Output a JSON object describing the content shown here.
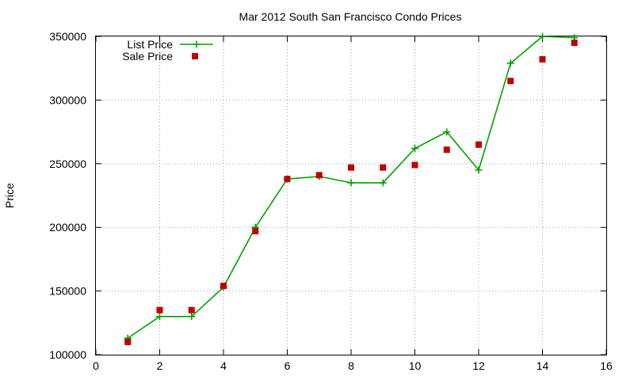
{
  "chart_data": {
    "type": "line",
    "title": "Mar 2012 South San Francisco Condo Prices",
    "xlabel": "",
    "ylabel": "Price",
    "xlim": [
      0,
      16
    ],
    "ylim": [
      100000,
      350000
    ],
    "xticks": [
      0,
      2,
      4,
      6,
      8,
      10,
      12,
      14,
      16
    ],
    "yticks": [
      100000,
      150000,
      200000,
      250000,
      300000,
      350000
    ],
    "grid": true,
    "legend_position": "top-left",
    "series": [
      {
        "name": "List Price",
        "style": "linespoints",
        "marker": "plus",
        "color": "#00a000",
        "x": [
          1,
          2,
          3,
          4,
          5,
          6,
          7,
          8,
          9,
          10,
          11,
          12,
          13,
          14,
          15
        ],
        "y": [
          113000,
          130000,
          130000,
          153000,
          200000,
          238000,
          240000,
          235000,
          235000,
          262000,
          275000,
          245000,
          329000,
          350000,
          349000
        ]
      },
      {
        "name": "Sale Price",
        "style": "points",
        "marker": "square",
        "color": "#c00000",
        "x": [
          1,
          2,
          3,
          4,
          5,
          6,
          7,
          8,
          9,
          10,
          11,
          12,
          13,
          14,
          15
        ],
        "y": [
          110000,
          135000,
          135000,
          154000,
          197000,
          238000,
          241000,
          247000,
          247000,
          249000,
          261000,
          265000,
          315000,
          332000,
          345000
        ]
      }
    ]
  }
}
